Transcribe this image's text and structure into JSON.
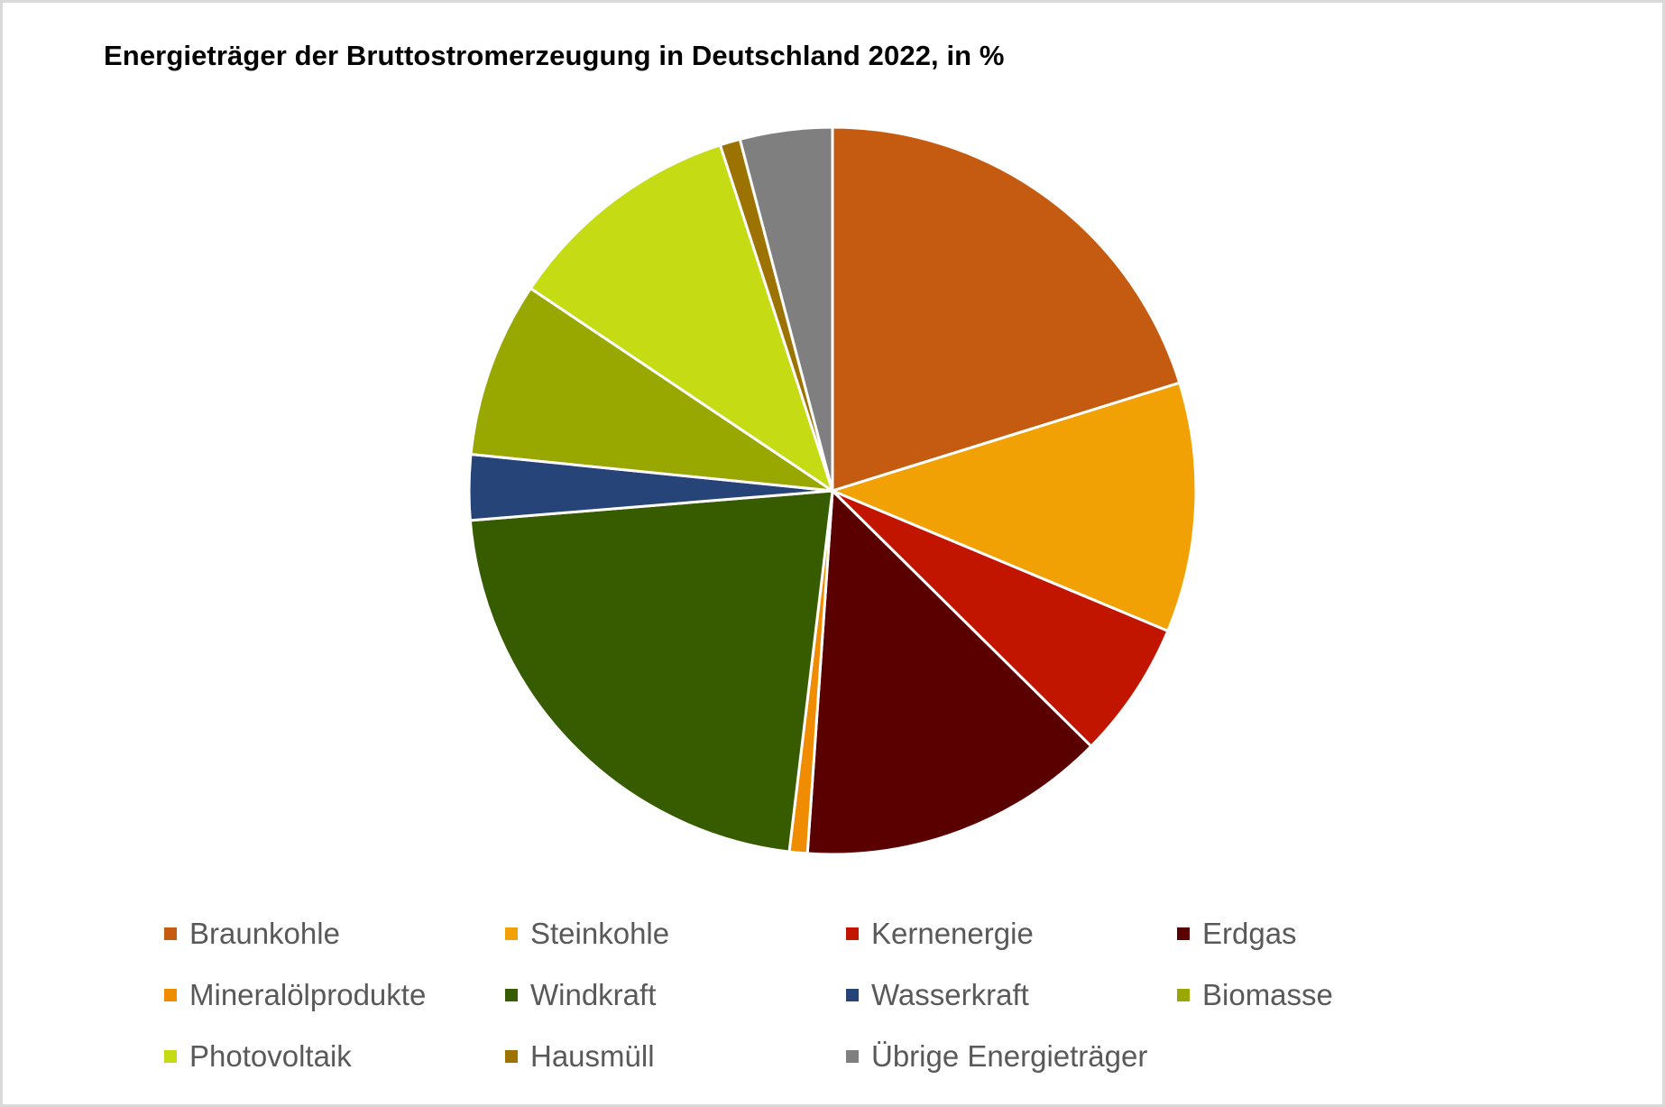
{
  "chart": {
    "title": "Energieträger der Bruttostromerzeugung in Deutschland 2022, in %"
  },
  "chart_data": {
    "type": "pie",
    "title": "Energieträger der Bruttostromerzeugung in Deutschland 2022, in %",
    "unit": "%",
    "start_angle": "12 o'clock, clockwise",
    "legend_position": "bottom",
    "categories": [
      "Braunkohle",
      "Steinkohle",
      "Kernenergie",
      "Erdgas",
      "Mineralölprodukte",
      "Windkraft",
      "Wasserkraft",
      "Biomasse",
      "Photovoltaik",
      "Hausmüll",
      "Übrige Energieträger"
    ],
    "values": [
      20.2,
      11.1,
      6.1,
      13.7,
      0.8,
      21.8,
      2.9,
      7.8,
      10.6,
      0.9,
      4.1
    ],
    "colors": [
      "#c55a11",
      "#f2a104",
      "#c21500",
      "#5a0000",
      "#f08c00",
      "#375c00",
      "#264478",
      "#98a800",
      "#c5dc14",
      "#9c7300",
      "#7f7f7f"
    ]
  },
  "legend": {
    "items": [
      {
        "label": "Braunkohle",
        "color": "#c55a11"
      },
      {
        "label": "Steinkohle",
        "color": "#f2a104"
      },
      {
        "label": "Kernenergie",
        "color": "#c21500"
      },
      {
        "label": "Erdgas",
        "color": "#5a0000"
      },
      {
        "label": "Mineralölprodukte",
        "color": "#f08c00"
      },
      {
        "label": "Windkraft",
        "color": "#375c00"
      },
      {
        "label": "Wasserkraft",
        "color": "#264478"
      },
      {
        "label": "Biomasse",
        "color": "#98a800"
      },
      {
        "label": "Photovoltaik",
        "color": "#c5dc14"
      },
      {
        "label": "Hausmüll",
        "color": "#9c7300"
      },
      {
        "label": "Übrige Energieträger",
        "color": "#7f7f7f"
      }
    ]
  }
}
